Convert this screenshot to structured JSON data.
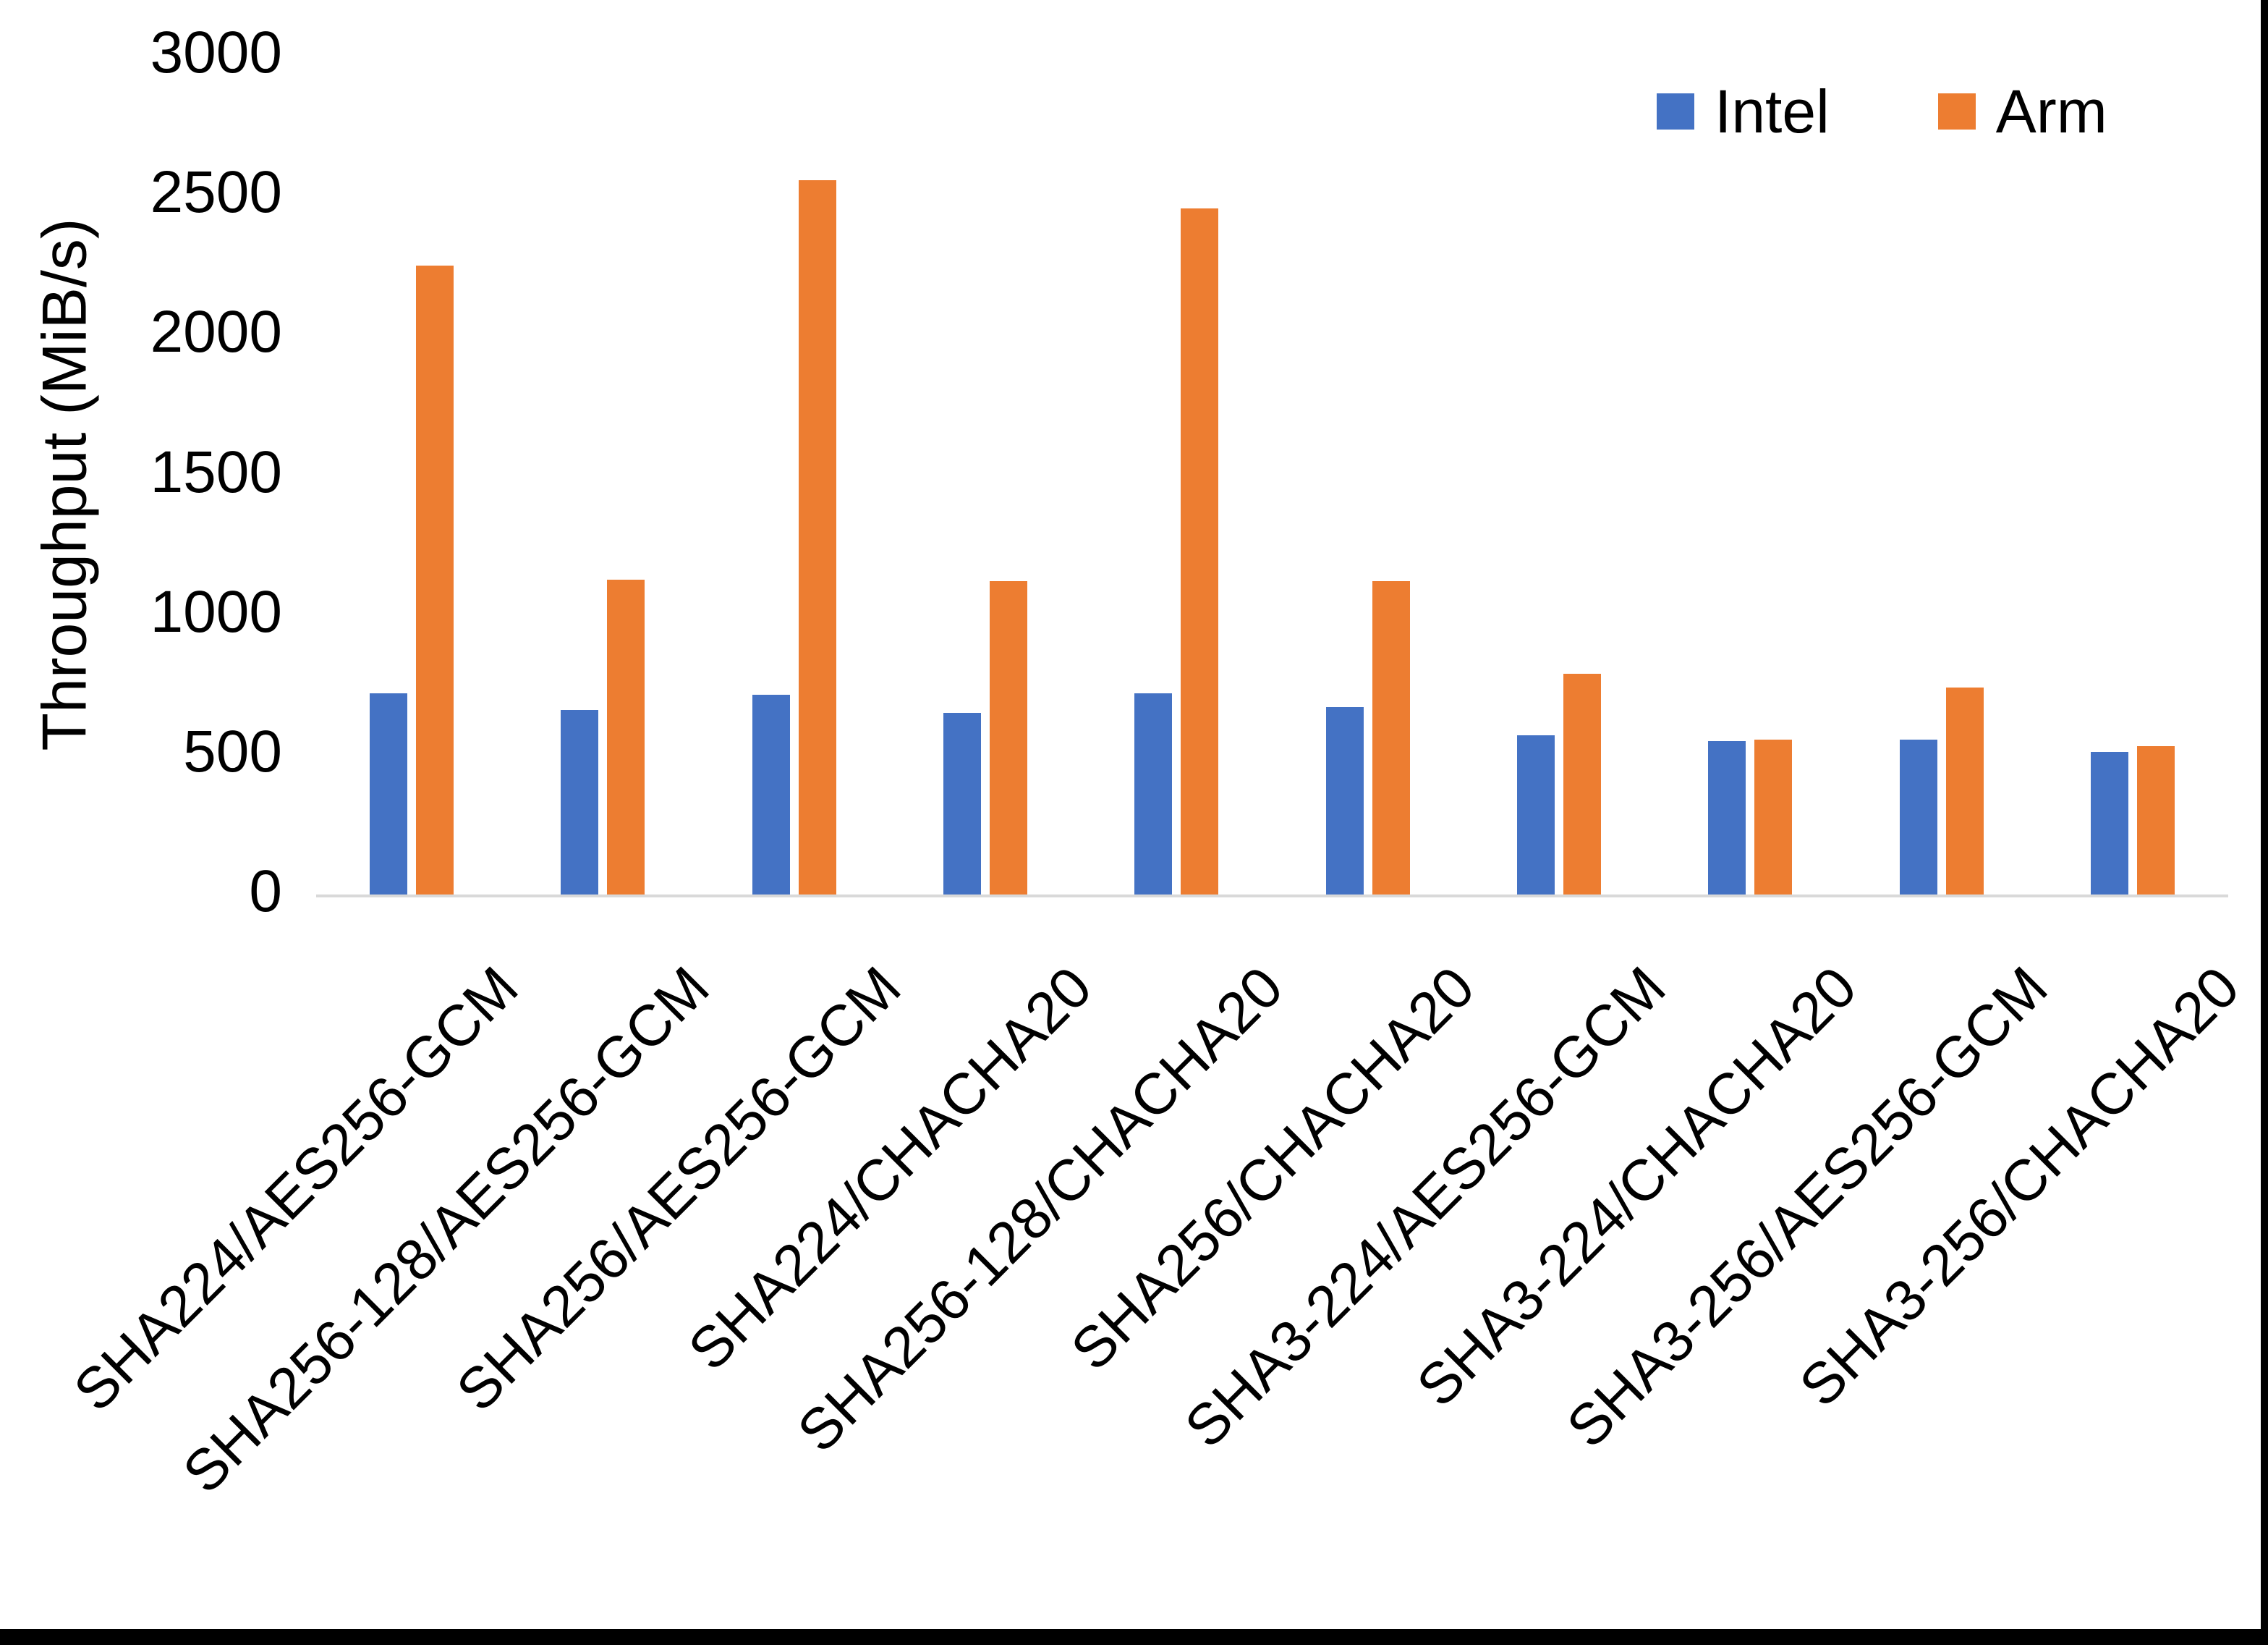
{
  "chart_data": {
    "type": "bar",
    "title": "",
    "xlabel": "",
    "ylabel": "Throughput (MiB/s)",
    "ylim": [
      0,
      3000
    ],
    "yticks": [
      0,
      500,
      1000,
      1500,
      2000,
      2500,
      3000
    ],
    "grid": false,
    "legend_position": "top-right",
    "categories": [
      "SHA224/AES256-GCM",
      "SHA256-128/AES256-GCM",
      "SHA256/AES256-GCM",
      "SHA224/CHACHA20",
      "SHA256-128/CHACHA20",
      "SHA256/CHACHA20",
      "SHA3-224/AES256-GCM",
      "SHA3-224/CHACHA20",
      "SHA3-256/AES256-GCM",
      "SHA3-256/CHACHA20"
    ],
    "series": [
      {
        "name": "Intel",
        "color": "#4472C4",
        "values": [
          720,
          660,
          715,
          650,
          720,
          670,
          570,
          550,
          555,
          510
        ]
      },
      {
        "name": "Arm",
        "color": "#ED7D31",
        "values": [
          2250,
          1125,
          2555,
          1120,
          2455,
          1120,
          790,
          555,
          740,
          530
        ]
      }
    ]
  },
  "legend": {
    "items": [
      {
        "label": "Intel",
        "color": "#4472C4"
      },
      {
        "label": "Arm",
        "color": "#ED7D31"
      }
    ]
  },
  "y_axis": {
    "title": "Throughput (MiB/s)"
  },
  "colors": {
    "background": "#FFFFFF",
    "axis_line": "#D9D9D9",
    "text": "#000000",
    "frame": "#000000"
  }
}
